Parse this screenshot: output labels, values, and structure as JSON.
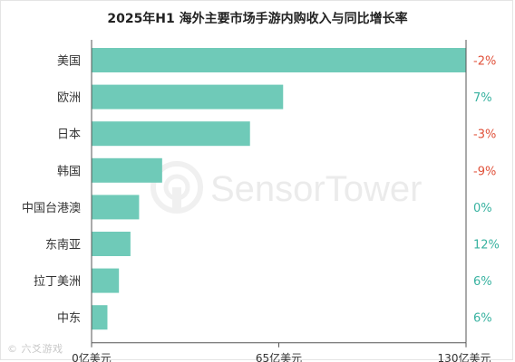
{
  "chart_data": {
    "type": "bar",
    "orientation": "horizontal",
    "title": "2025年H1 海外主要市场手游内购收入与同比增长率",
    "categories": [
      "美国",
      "欧洲",
      "日本",
      "韩国",
      "中国台港澳",
      "东南亚",
      "拉丁美洲",
      "中东"
    ],
    "values": [
      130,
      66.5,
      55,
      24.5,
      16.5,
      13.5,
      9.5,
      5.5
    ],
    "growth": [
      "-2%",
      "7%",
      "-3%",
      "-9%",
      "0%",
      "12%",
      "6%",
      "6%"
    ],
    "growth_colors": [
      "#e0513a",
      "#38b2a0",
      "#e0513a",
      "#e0513a",
      "#38b2a0",
      "#38b2a0",
      "#38b2a0",
      "#38b2a0"
    ],
    "xlim": [
      0,
      130
    ],
    "xticks": [
      {
        "value": 0,
        "label": "0亿美元"
      },
      {
        "value": 65,
        "label": "65亿美元"
      },
      {
        "value": 130,
        "label": "130亿美元"
      }
    ],
    "bar_color": "#6fcab8",
    "grid": false,
    "watermark": "SensorTower"
  },
  "footer": "© 六爻游戏"
}
